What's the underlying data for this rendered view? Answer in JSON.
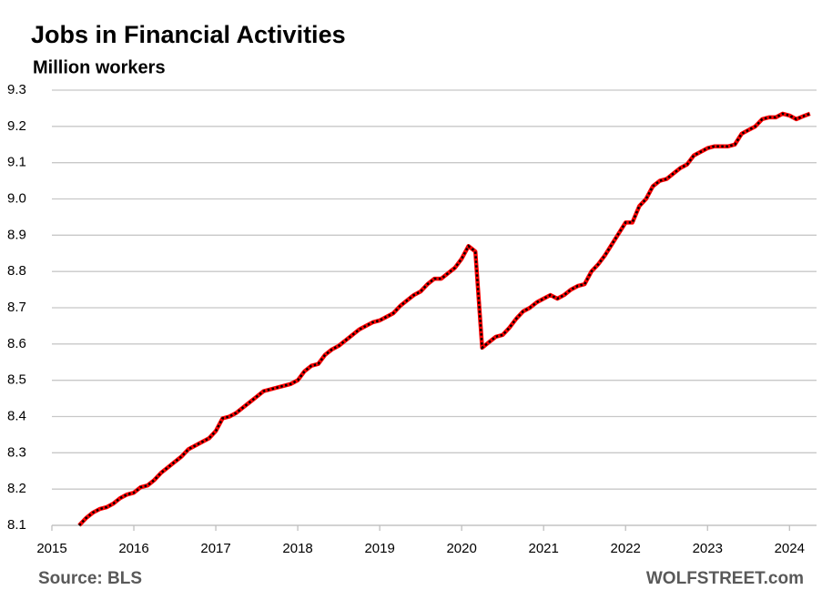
{
  "chart_data": {
    "type": "line",
    "title": "Jobs in Financial Activities",
    "subtitle": "Million workers",
    "source": "Source: BLS",
    "brand": "WOLFSTREET.com",
    "line_color": "#ff0000",
    "dot_color": "#000000",
    "grid": true,
    "xlim": [
      2015,
      2024.33
    ],
    "xticks": [
      2015,
      2016,
      2017,
      2018,
      2019,
      2020,
      2021,
      2022,
      2023,
      2024
    ],
    "ylim": [
      8.1,
      9.3
    ],
    "yticks": [
      8.1,
      8.2,
      8.3,
      8.4,
      8.5,
      8.6,
      8.7,
      8.8,
      8.9,
      {
        "value": 9,
        "label": "9.0"
      },
      9.1,
      9.2,
      9.3
    ],
    "x": [
      2015.333,
      2015.417,
      2015.5,
      2015.583,
      2015.667,
      2015.75,
      2015.833,
      2015.917,
      2016,
      2016.083,
      2016.167,
      2016.25,
      2016.333,
      2016.417,
      2016.5,
      2016.583,
      2016.667,
      2016.75,
      2016.833,
      2016.917,
      2017,
      2017.083,
      2017.167,
      2017.25,
      2017.333,
      2017.417,
      2017.5,
      2017.583,
      2017.667,
      2017.75,
      2017.833,
      2017.917,
      2018,
      2018.083,
      2018.167,
      2018.25,
      2018.333,
      2018.417,
      2018.5,
      2018.583,
      2018.667,
      2018.75,
      2018.833,
      2018.917,
      2019,
      2019.083,
      2019.167,
      2019.25,
      2019.333,
      2019.417,
      2019.5,
      2019.583,
      2019.667,
      2019.75,
      2019.833,
      2019.917,
      2020,
      2020.083,
      2020.167,
      2020.25,
      2020.333,
      2020.417,
      2020.5,
      2020.583,
      2020.667,
      2020.75,
      2020.833,
      2020.917,
      2021,
      2021.083,
      2021.167,
      2021.25,
      2021.333,
      2021.417,
      2021.5,
      2021.583,
      2021.667,
      2021.75,
      2021.833,
      2021.917,
      2022,
      2022.083,
      2022.167,
      2022.25,
      2022.333,
      2022.417,
      2022.5,
      2022.583,
      2022.667,
      2022.75,
      2022.833,
      2022.917,
      2023,
      2023.083,
      2023.167,
      2023.25,
      2023.333,
      2023.417,
      2023.5,
      2023.583,
      2023.667,
      2023.75,
      2023.833,
      2023.917,
      2024,
      2024.083,
      2024.167,
      2024.25
    ],
    "values": [
      8.1,
      8.12,
      8.135,
      8.145,
      8.15,
      8.16,
      8.175,
      8.185,
      8.19,
      8.205,
      8.21,
      8.225,
      8.245,
      8.26,
      8.275,
      8.29,
      8.31,
      8.32,
      8.33,
      8.34,
      8.36,
      8.395,
      8.4,
      8.41,
      8.425,
      8.44,
      8.455,
      8.47,
      8.475,
      8.48,
      8.485,
      8.49,
      8.5,
      8.525,
      8.54,
      8.545,
      8.57,
      8.585,
      8.595,
      8.61,
      8.625,
      8.64,
      8.65,
      8.66,
      8.665,
      8.675,
      8.685,
      8.705,
      8.72,
      8.735,
      8.745,
      8.765,
      8.78,
      8.78,
      8.795,
      8.81,
      8.835,
      8.87,
      8.855,
      8.59,
      8.605,
      8.62,
      8.625,
      8.645,
      8.67,
      8.69,
      8.7,
      8.715,
      8.725,
      8.735,
      8.725,
      8.735,
      8.75,
      8.76,
      8.765,
      8.8,
      8.82,
      8.845,
      8.875,
      8.905,
      8.935,
      8.935,
      8.98,
      9.0,
      9.035,
      9.05,
      9.055,
      9.07,
      9.085,
      9.095,
      9.12,
      9.13,
      9.14,
      9.145,
      9.145,
      9.145,
      9.15,
      9.18,
      9.19,
      9.2,
      9.22,
      9.225,
      9.225,
      9.235,
      9.23,
      9.22,
      9.228,
      9.235
    ]
  }
}
